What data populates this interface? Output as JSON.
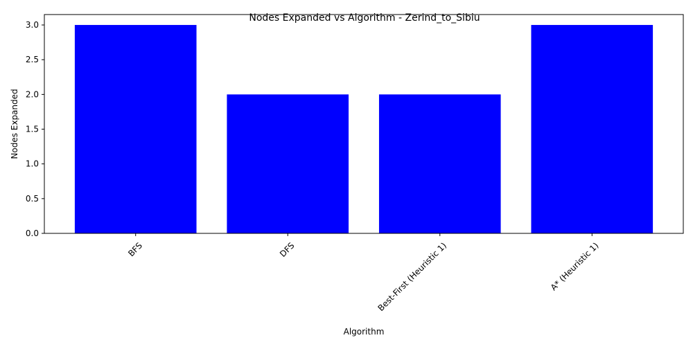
{
  "chart_data": {
    "type": "bar",
    "title": "Nodes Expanded vs Algorithm - Zerind_to_Sibiu",
    "xlabel": "Algorithm",
    "ylabel": "Nodes Expanded",
    "categories": [
      "BFS",
      "DFS",
      "Best-First (Heuristic 1)",
      "A* (Heuristic 1)"
    ],
    "values": [
      3,
      2,
      2,
      3
    ],
    "ylim": [
      0,
      3.15
    ],
    "yticks": [
      0.0,
      0.5,
      1.0,
      1.5,
      2.0,
      2.5,
      3.0
    ],
    "ytick_labels": [
      "0.0",
      "0.5",
      "1.0",
      "1.5",
      "2.0",
      "2.5",
      "3.0"
    ],
    "bar_color": "#0000ff",
    "grid": false,
    "legend": "none"
  }
}
